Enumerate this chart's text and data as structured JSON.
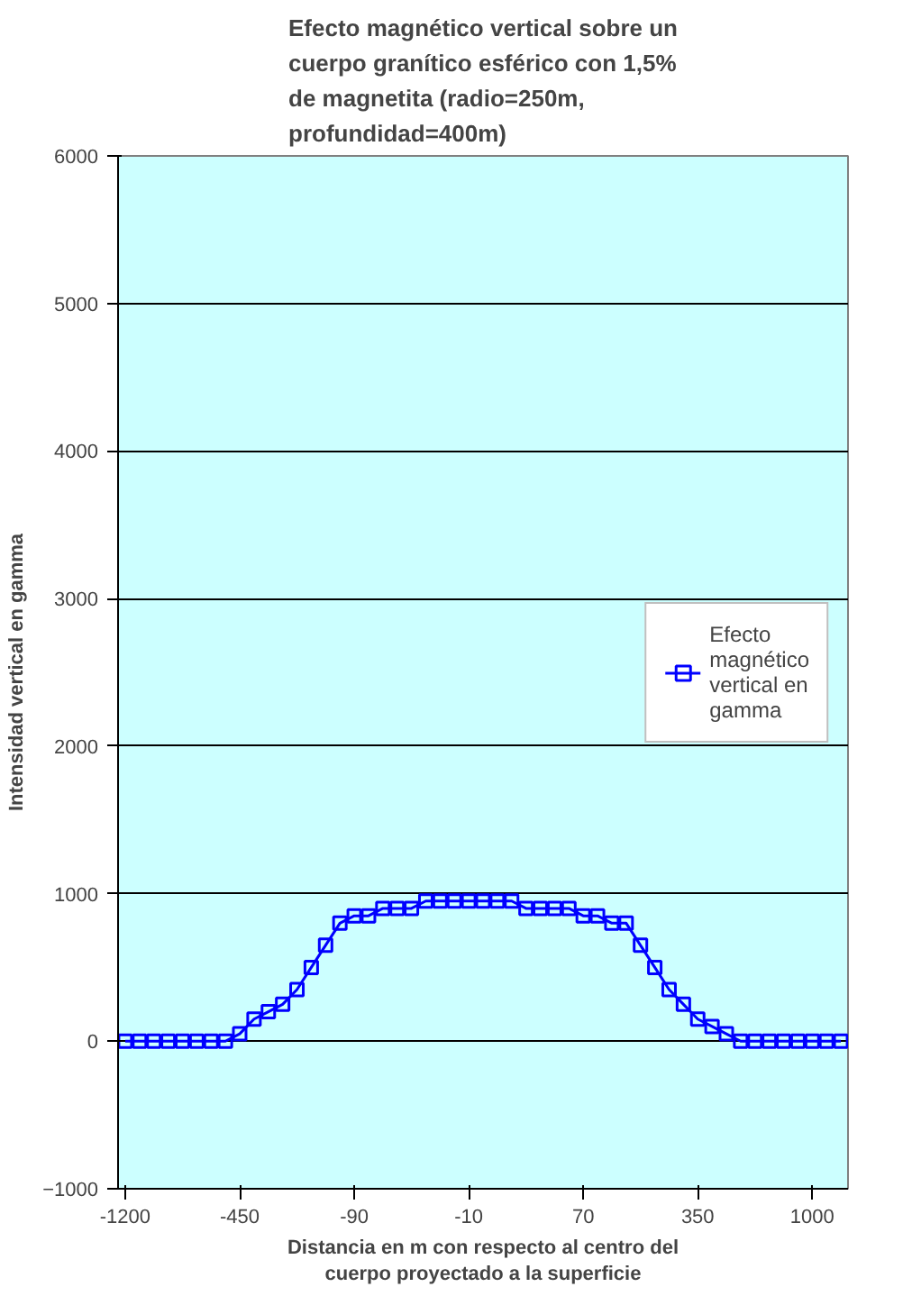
{
  "chart_data": {
    "type": "line",
    "title": "Efecto magnético vertical sobre un cuerpo granítico esférico con 1,5% de magnetita (radio=250m, profundidad=400m)",
    "xlabel": "Distancia en m con respecto al centro del cuerpo proyectado a la superficie",
    "ylabel": "Intensidad vertical en gamma",
    "categories": [
      "-1200",
      null,
      null,
      null,
      null,
      null,
      null,
      null,
      "-450",
      null,
      null,
      null,
      null,
      null,
      null,
      null,
      "-90",
      null,
      null,
      null,
      null,
      null,
      null,
      null,
      "-10",
      null,
      null,
      null,
      null,
      null,
      null,
      null,
      "70",
      null,
      null,
      null,
      null,
      null,
      null,
      null,
      "350",
      null,
      null,
      null,
      null,
      null,
      null,
      null,
      "1000",
      null,
      null
    ],
    "series": [
      {
        "name": "Efecto magnético vertical en gamma",
        "color": "#0000ff",
        "values": [
          0,
          0,
          0,
          0,
          0,
          0,
          0,
          0,
          50,
          150,
          200,
          250,
          350,
          500,
          650,
          800,
          850,
          850,
          900,
          900,
          900,
          950,
          950,
          950,
          950,
          950,
          950,
          950,
          900,
          900,
          900,
          900,
          850,
          850,
          800,
          800,
          650,
          500,
          350,
          250,
          150,
          100,
          50,
          0,
          0,
          0,
          0,
          0,
          0,
          0,
          0
        ]
      }
    ],
    "ylim": [
      -1000,
      6000
    ],
    "yticks": [
      -1000,
      0,
      1000,
      2000,
      3000,
      4000,
      5000,
      6000
    ],
    "grid": "y",
    "legend": "right",
    "marker": "square",
    "line_style": "solid"
  }
}
